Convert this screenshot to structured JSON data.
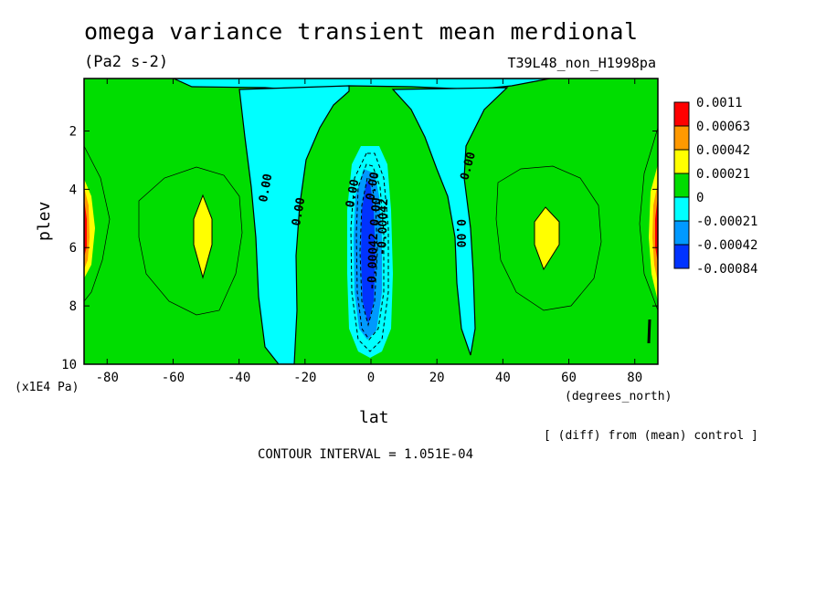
{
  "chart_data": {
    "type": "heatmap",
    "title": "omega variance transient mean merdional",
    "units_label": "(Pa2 s-2)",
    "run_label": "T39L48_non_H1998pa",
    "xlabel": "lat",
    "x_units": "(degrees_north)",
    "ylabel": "plev",
    "y_units": "(x1E4 Pa)",
    "xlim": [
      -87,
      87
    ],
    "ylim": [
      10,
      0.2
    ],
    "x_ticks": [
      "-80",
      "-60",
      "-40",
      "-20",
      "0",
      "20",
      "40",
      "60",
      "80"
    ],
    "x_tick_values": [
      -80,
      -60,
      -40,
      -20,
      0,
      20,
      40,
      60,
      80
    ],
    "y_ticks": [
      "2",
      "4",
      "6",
      "8",
      "10"
    ],
    "y_tick_values": [
      2,
      4,
      6,
      8,
      10
    ],
    "contour_labels": [
      "0.00",
      "0.00",
      "0.00",
      "0.00",
      "0.00",
      "0.00",
      "-0.00042",
      "-0.00042",
      "0.00"
    ],
    "note": "[ (diff) from (mean) control ]",
    "contour_interval": "CONTOUR INTERVAL = 1.051E-04",
    "colorbar": {
      "labels": [
        "0.0011",
        "0.00063",
        "0.00042",
        "0.00021",
        "0",
        "-0.00021",
        "-0.00042",
        "-0.00084"
      ],
      "colors": [
        "#ff0000",
        "#ff9900",
        "#ffff00",
        "#00dd00",
        "#00ffff",
        "#0099ff",
        "#0033ff"
      ]
    }
  }
}
